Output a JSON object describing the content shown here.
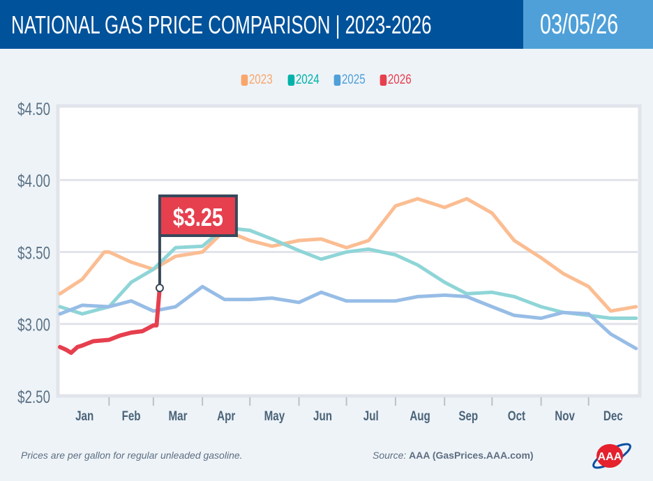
{
  "header": {
    "title": "NATIONAL GAS PRICE COMPARISON | 2023-2026",
    "date": "03/05/26"
  },
  "footer": {
    "note": "Prices are per gallon for regular unleaded gasoline.",
    "source_label": "Source:",
    "source_value": "AAA (GasPrices.AAA.com)",
    "logo_text": "AAA"
  },
  "chart_data": {
    "type": "line",
    "title": "",
    "xlabel": "",
    "ylabel": "",
    "ylim": [
      2.5,
      4.5
    ],
    "y_ticks": [
      "$2.50",
      "$3.00",
      "$3.50",
      "$4.00",
      "$4.50"
    ],
    "y_tick_values": [
      2.5,
      3.0,
      3.5,
      4.0,
      4.5
    ],
    "x_ticks": [
      "Jan",
      "Feb",
      "Mar",
      "Apr",
      "May",
      "Jun",
      "Jul",
      "Aug",
      "Sep",
      "Oct",
      "Nov",
      "Dec"
    ],
    "grid": true,
    "legend_position": "top-center",
    "annotation": {
      "label": "$3.25",
      "date": "03-05",
      "value": 3.25,
      "series": "2026"
    },
    "series": [
      {
        "name": "2023",
        "color": "#f9a66c",
        "line_color": "#fbbd92",
        "x": [
          "01-01",
          "01-15",
          "01-29",
          "02-01",
          "02-15",
          "03-01",
          "03-15",
          "04-01",
          "04-15",
          "05-01",
          "05-15",
          "06-01",
          "06-15",
          "07-01",
          "07-15",
          "08-01",
          "08-15",
          "09-01",
          "09-15",
          "10-01",
          "10-15",
          "11-01",
          "11-15",
          "12-01",
          "12-15",
          "12-31"
        ],
        "values": [
          3.21,
          3.31,
          3.5,
          3.5,
          3.43,
          3.38,
          3.47,
          3.5,
          3.65,
          3.58,
          3.54,
          3.58,
          3.59,
          3.53,
          3.58,
          3.82,
          3.87,
          3.81,
          3.87,
          3.77,
          3.58,
          3.46,
          3.35,
          3.26,
          3.09,
          3.12
        ]
      },
      {
        "name": "2024",
        "color": "#00b2a9",
        "line_color": "#8fd5d7",
        "x": [
          "01-01",
          "01-15",
          "02-01",
          "02-15",
          "03-01",
          "03-15",
          "04-01",
          "04-15",
          "05-01",
          "05-15",
          "06-01",
          "06-15",
          "07-01",
          "07-15",
          "08-01",
          "08-15",
          "09-01",
          "09-15",
          "10-01",
          "10-15",
          "11-01",
          "11-15",
          "12-01",
          "12-15",
          "12-31"
        ],
        "values": [
          3.12,
          3.07,
          3.12,
          3.29,
          3.38,
          3.53,
          3.54,
          3.67,
          3.65,
          3.59,
          3.51,
          3.45,
          3.5,
          3.52,
          3.48,
          3.41,
          3.29,
          3.21,
          3.22,
          3.19,
          3.12,
          3.08,
          3.06,
          3.04,
          3.04
        ]
      },
      {
        "name": "2025",
        "color": "#4f9fd8",
        "line_color": "#97bde6",
        "x": [
          "01-01",
          "01-15",
          "02-01",
          "02-15",
          "03-01",
          "03-15",
          "04-01",
          "04-15",
          "05-01",
          "05-15",
          "06-01",
          "06-15",
          "07-01",
          "07-15",
          "08-01",
          "08-15",
          "09-01",
          "09-15",
          "10-01",
          "10-15",
          "11-01",
          "11-15",
          "12-01",
          "12-15",
          "12-31"
        ],
        "values": [
          3.07,
          3.13,
          3.12,
          3.16,
          3.09,
          3.12,
          3.26,
          3.17,
          3.17,
          3.18,
          3.15,
          3.22,
          3.16,
          3.16,
          3.16,
          3.19,
          3.2,
          3.19,
          3.12,
          3.06,
          3.04,
          3.08,
          3.07,
          2.93,
          2.83
        ]
      },
      {
        "name": "2026",
        "color": "#e63f4e",
        "line_color": "#e63f4e",
        "x": [
          "01-01",
          "01-05",
          "01-08",
          "01-12",
          "01-15",
          "01-22",
          "02-01",
          "02-08",
          "02-15",
          "02-22",
          "03-01",
          "03-03",
          "03-05"
        ],
        "values": [
          2.84,
          2.82,
          2.8,
          2.84,
          2.85,
          2.88,
          2.89,
          2.92,
          2.94,
          2.95,
          2.99,
          2.99,
          3.25
        ]
      }
    ]
  }
}
